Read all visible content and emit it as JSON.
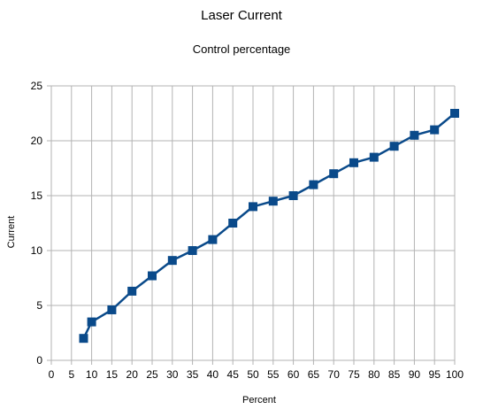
{
  "chart_data": {
    "type": "line",
    "title": "Laser Current",
    "subtitle": "Control percentage",
    "xlabel": "Percent",
    "ylabel": "Current",
    "xlim": [
      0,
      100
    ],
    "ylim": [
      0,
      25
    ],
    "x_ticks": [
      0,
      5,
      10,
      15,
      20,
      25,
      30,
      35,
      40,
      45,
      50,
      55,
      60,
      65,
      70,
      75,
      80,
      85,
      90,
      95,
      100
    ],
    "y_ticks": [
      0,
      5,
      10,
      15,
      20,
      25
    ],
    "grid": true,
    "series": [
      {
        "color": "#0a4a8a",
        "marker": "square",
        "x": [
          8,
          10,
          15,
          20,
          25,
          30,
          35,
          40,
          45,
          50,
          55,
          60,
          65,
          70,
          75,
          80,
          85,
          90,
          95,
          100
        ],
        "y": [
          2.0,
          3.5,
          4.6,
          6.3,
          7.7,
          9.1,
          10.0,
          11.0,
          12.5,
          14.0,
          14.5,
          15.0,
          16.0,
          17.0,
          18.0,
          18.5,
          19.5,
          20.5,
          21.0,
          22.5
        ]
      }
    ]
  }
}
